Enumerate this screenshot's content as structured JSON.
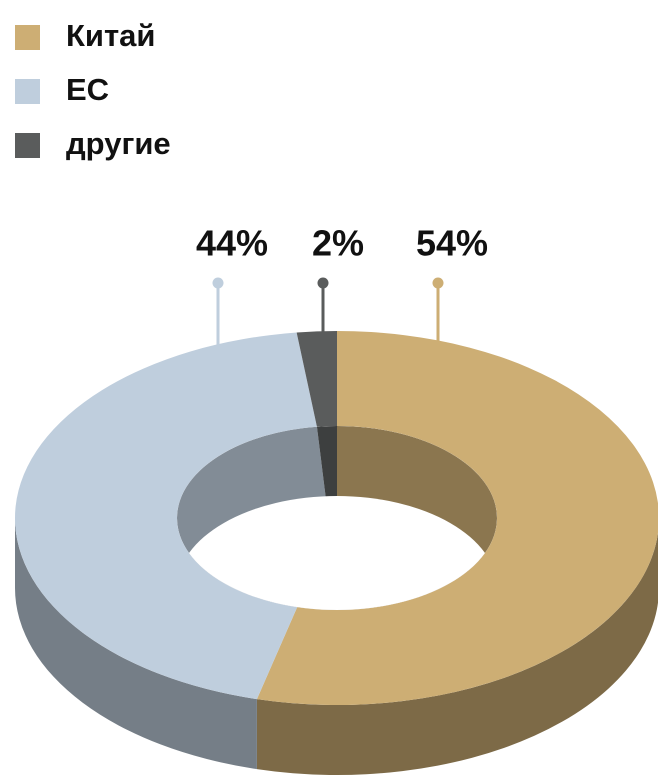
{
  "chart_data": {
    "type": "pie",
    "categories": [
      "Китай",
      "ЕС",
      "другие"
    ],
    "values": [
      54,
      44,
      2
    ],
    "value_labels": [
      "54%",
      "44%",
      "2%"
    ],
    "colors": [
      "#cdae74",
      "#bfcedd",
      "#5a5c5c"
    ],
    "legend": "top-left"
  }
}
